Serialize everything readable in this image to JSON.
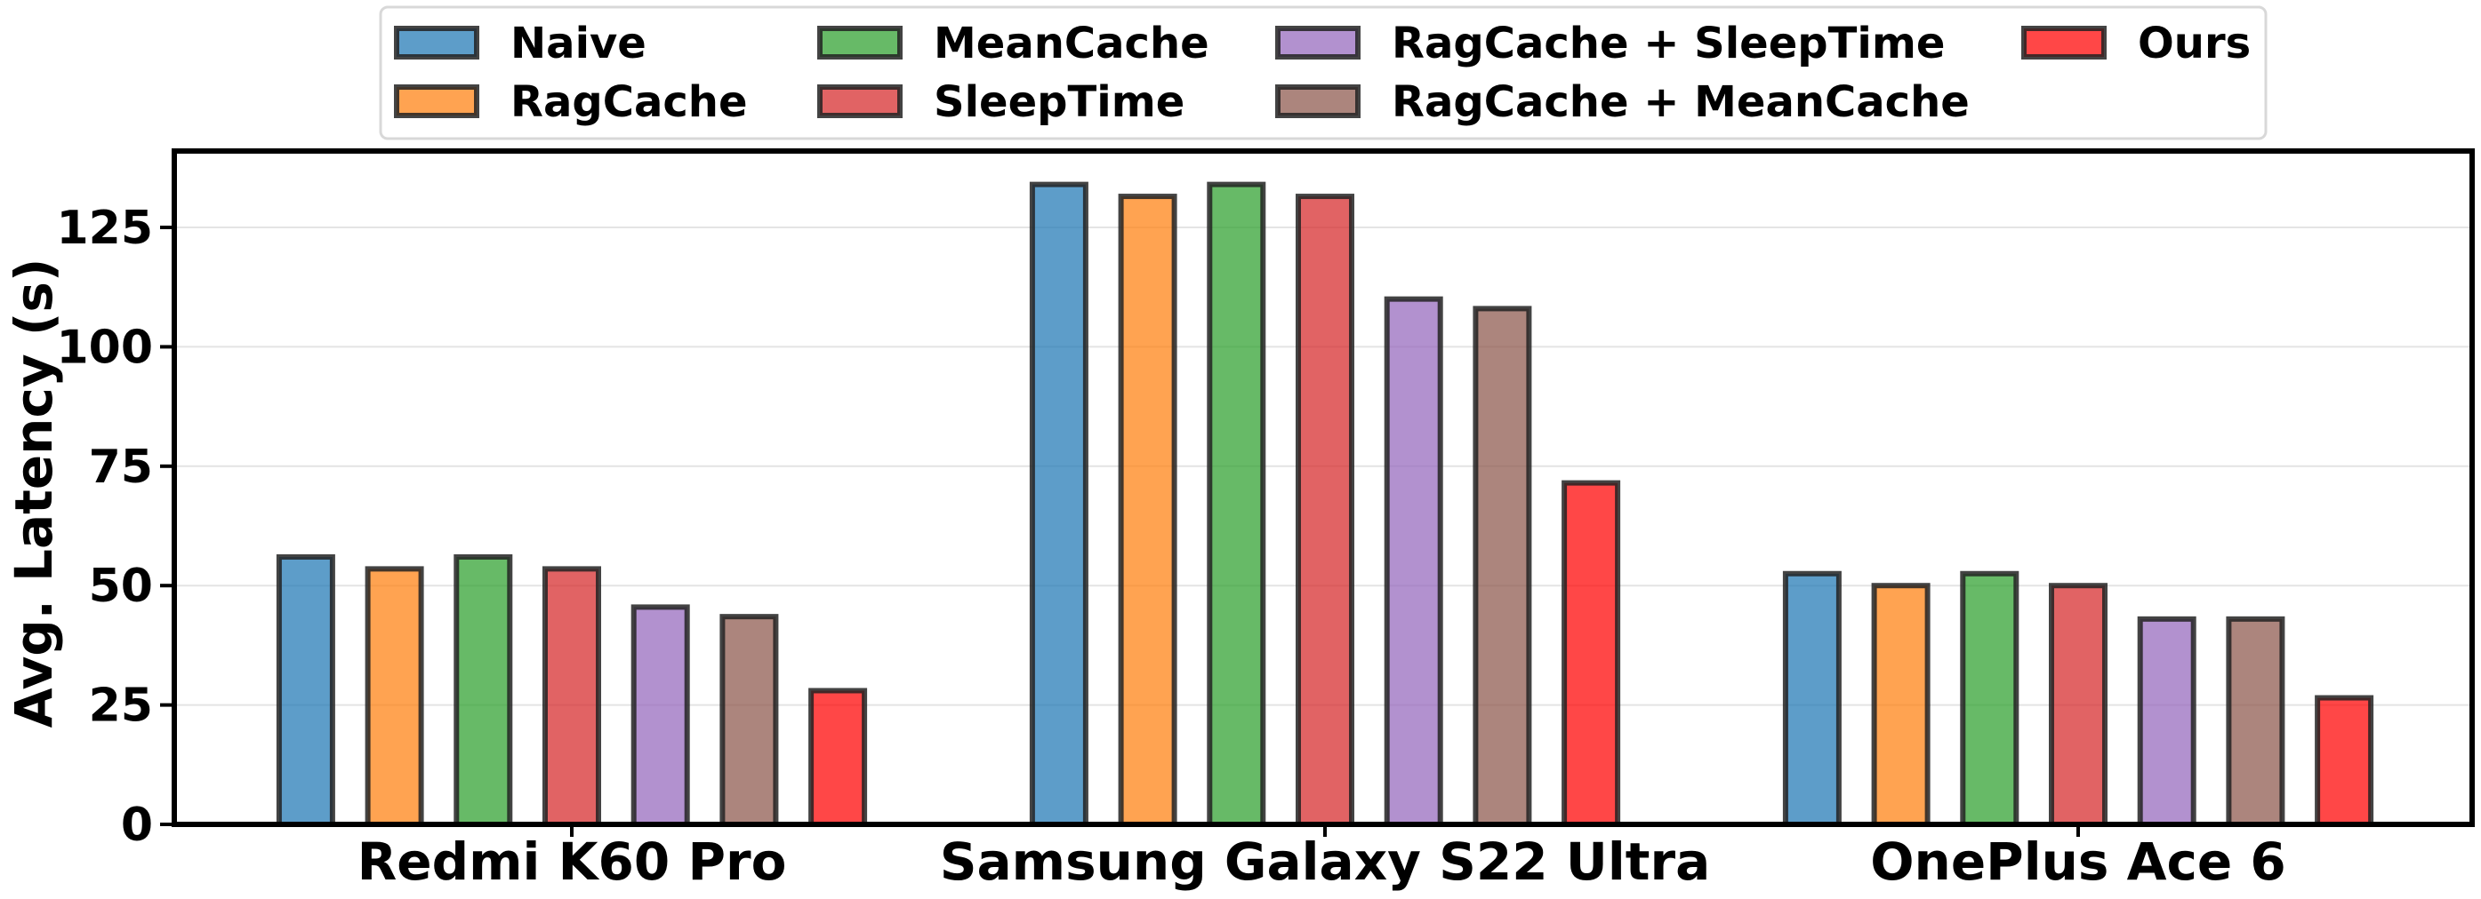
{
  "chart_data": {
    "type": "bar",
    "title": "",
    "xlabel": "",
    "ylabel": "Avg. Latency (s)",
    "ylim": [
      0,
      141
    ],
    "yticks": [
      0,
      25,
      50,
      75,
      100,
      125
    ],
    "grid": "horizontal, light",
    "legend_position": "top-center, outside, 4 columns",
    "categories": [
      "Redmi K60 Pro",
      "Samsung Galaxy S22 Ultra",
      "OnePlus Ace 6"
    ],
    "series": [
      {
        "name": "Naive",
        "color": "#1f77b4",
        "values": [
          56,
          134,
          52.5
        ]
      },
      {
        "name": "RagCache",
        "color": "#ff7f0e",
        "values": [
          53.5,
          131.5,
          50
        ]
      },
      {
        "name": "MeanCache",
        "color": "#2ca02c",
        "values": [
          56,
          134,
          52.5
        ]
      },
      {
        "name": "SleepTime",
        "color": "#d62728",
        "values": [
          53.5,
          131.5,
          50
        ]
      },
      {
        "name": "RagCache + SleepTime",
        "color": "#9467bd",
        "values": [
          45.5,
          110,
          43
        ]
      },
      {
        "name": "RagCache + MeanCache",
        "color": "#8c564b",
        "values": [
          43.5,
          108,
          43
        ]
      },
      {
        "name": "Ours",
        "color": "#ff0000",
        "values": [
          28,
          71.5,
          26.5
        ]
      }
    ]
  }
}
